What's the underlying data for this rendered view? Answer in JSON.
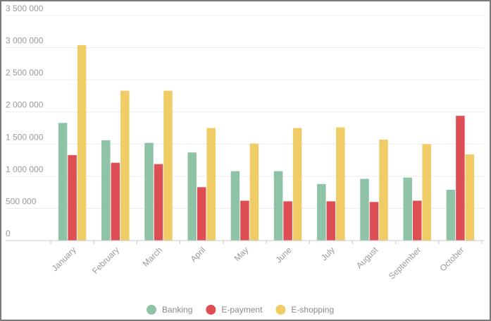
{
  "chart_data": {
    "type": "bar",
    "title": "",
    "xlabel": "",
    "ylabel": "",
    "categories": [
      "January",
      "February",
      "March",
      "April",
      "May",
      "June",
      "July",
      "August",
      "September",
      "October"
    ],
    "series": [
      {
        "name": "Banking",
        "color": "#8fc3a8",
        "values": [
          1830000,
          1560000,
          1520000,
          1370000,
          1080000,
          1080000,
          880000,
          960000,
          980000,
          790000
        ]
      },
      {
        "name": "E-payment",
        "color": "#dd4f55",
        "values": [
          1330000,
          1210000,
          1190000,
          830000,
          620000,
          610000,
          610000,
          600000,
          620000,
          1940000
        ]
      },
      {
        "name": "E-shopping",
        "color": "#f0cc66",
        "values": [
          3040000,
          2330000,
          2330000,
          1750000,
          1510000,
          1750000,
          1760000,
          1570000,
          1500000,
          1340000
        ]
      }
    ],
    "ylim": [
      0,
      3500000
    ],
    "yticks": [
      0,
      500000,
      1000000,
      1500000,
      2000000,
      2500000,
      3000000,
      3500000
    ],
    "ytick_labels": [
      "0",
      "500 000",
      "1 000 000",
      "1 500 000",
      "2 000 000",
      "2 500 000",
      "3 000 000",
      "3 500 000"
    ],
    "grid": true,
    "legend": "bottom-center"
  }
}
